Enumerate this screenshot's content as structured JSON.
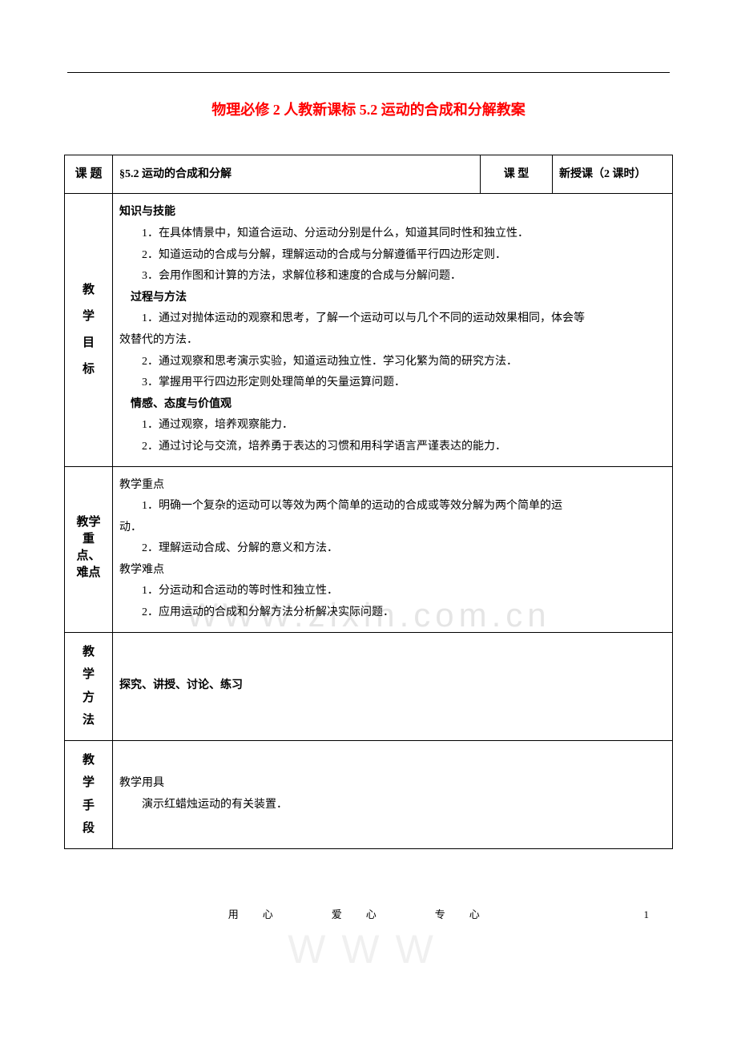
{
  "document_title": "物理必修 2 人教新课标 5.2 运动的合成和分解教案",
  "row_topic": {
    "label": "课 题",
    "value": "§5.2 运动的合成和分解",
    "type_label": "课 型",
    "type_value": "新授课（2 课时）"
  },
  "row_goal": {
    "label_chars": [
      "教",
      "学",
      "目",
      "标"
    ],
    "section1_hd": "知识与技能",
    "section1_items": [
      "1．在具体情景中，知道合运动、分运动分别是什么，知道其同时性和独立性．",
      "2．知道运动的合成与分解，理解运动的合成与分解遵循平行四边形定则．",
      "3．会用作图和计算的方法，求解位移和速度的合成与分解问题．"
    ],
    "section2_hd": "过程与方法",
    "section2_item1_a": "1．通过对抛体运动的观察和思考，了解一个运动可以与几个不同的运动效果相同，体会等",
    "section2_item1_b": "效替代的方法．",
    "section2_items_rest": [
      "2．通过观察和思考演示实验，知道运动独立性．学习化繁为简的研究方法．",
      "3．掌握用平行四边形定则处理简单的矢量运算问题．"
    ],
    "section3_hd": "情感、态度与价值观",
    "section3_items": [
      "1．通过观察，培养观察能力．",
      "2．通过讨论与交流，培养勇于表达的习惯和用科学语言严谨表达的能力．"
    ]
  },
  "row_focus": {
    "label_text": "教学重点、难点",
    "hd1": "教学重点",
    "item1_a": "1．明确一个复杂的运动可以等效为两个简单的运动的合成或等效分解为两个简单的运",
    "item1_b": "动．",
    "item2": "2．理解运动合成、分解的意义和方法．",
    "hd2": "教学难点",
    "items2": [
      "1．分运动和合运动的等时性和独立性．",
      "2．应用运动的合成和分解方法分析解决实际问题．"
    ]
  },
  "row_method": {
    "label_chars": [
      "教",
      "学",
      "方",
      "法"
    ],
    "value": "探究、讲授、讨论、练习"
  },
  "row_tool": {
    "label_chars": [
      "教",
      "学",
      "手",
      "段"
    ],
    "hd": "教学用具",
    "item": "演示红蜡烛运动的有关装置．"
  },
  "watermark_text": "WWW.zixin.com.cn",
  "watermark2_text": "WWW",
  "footer_center": "用心　爱心　专心",
  "footer_page": "1",
  "colors": {
    "title": "#ff0000",
    "text": "#000000",
    "border": "#000000",
    "bg": "#ffffff"
  }
}
